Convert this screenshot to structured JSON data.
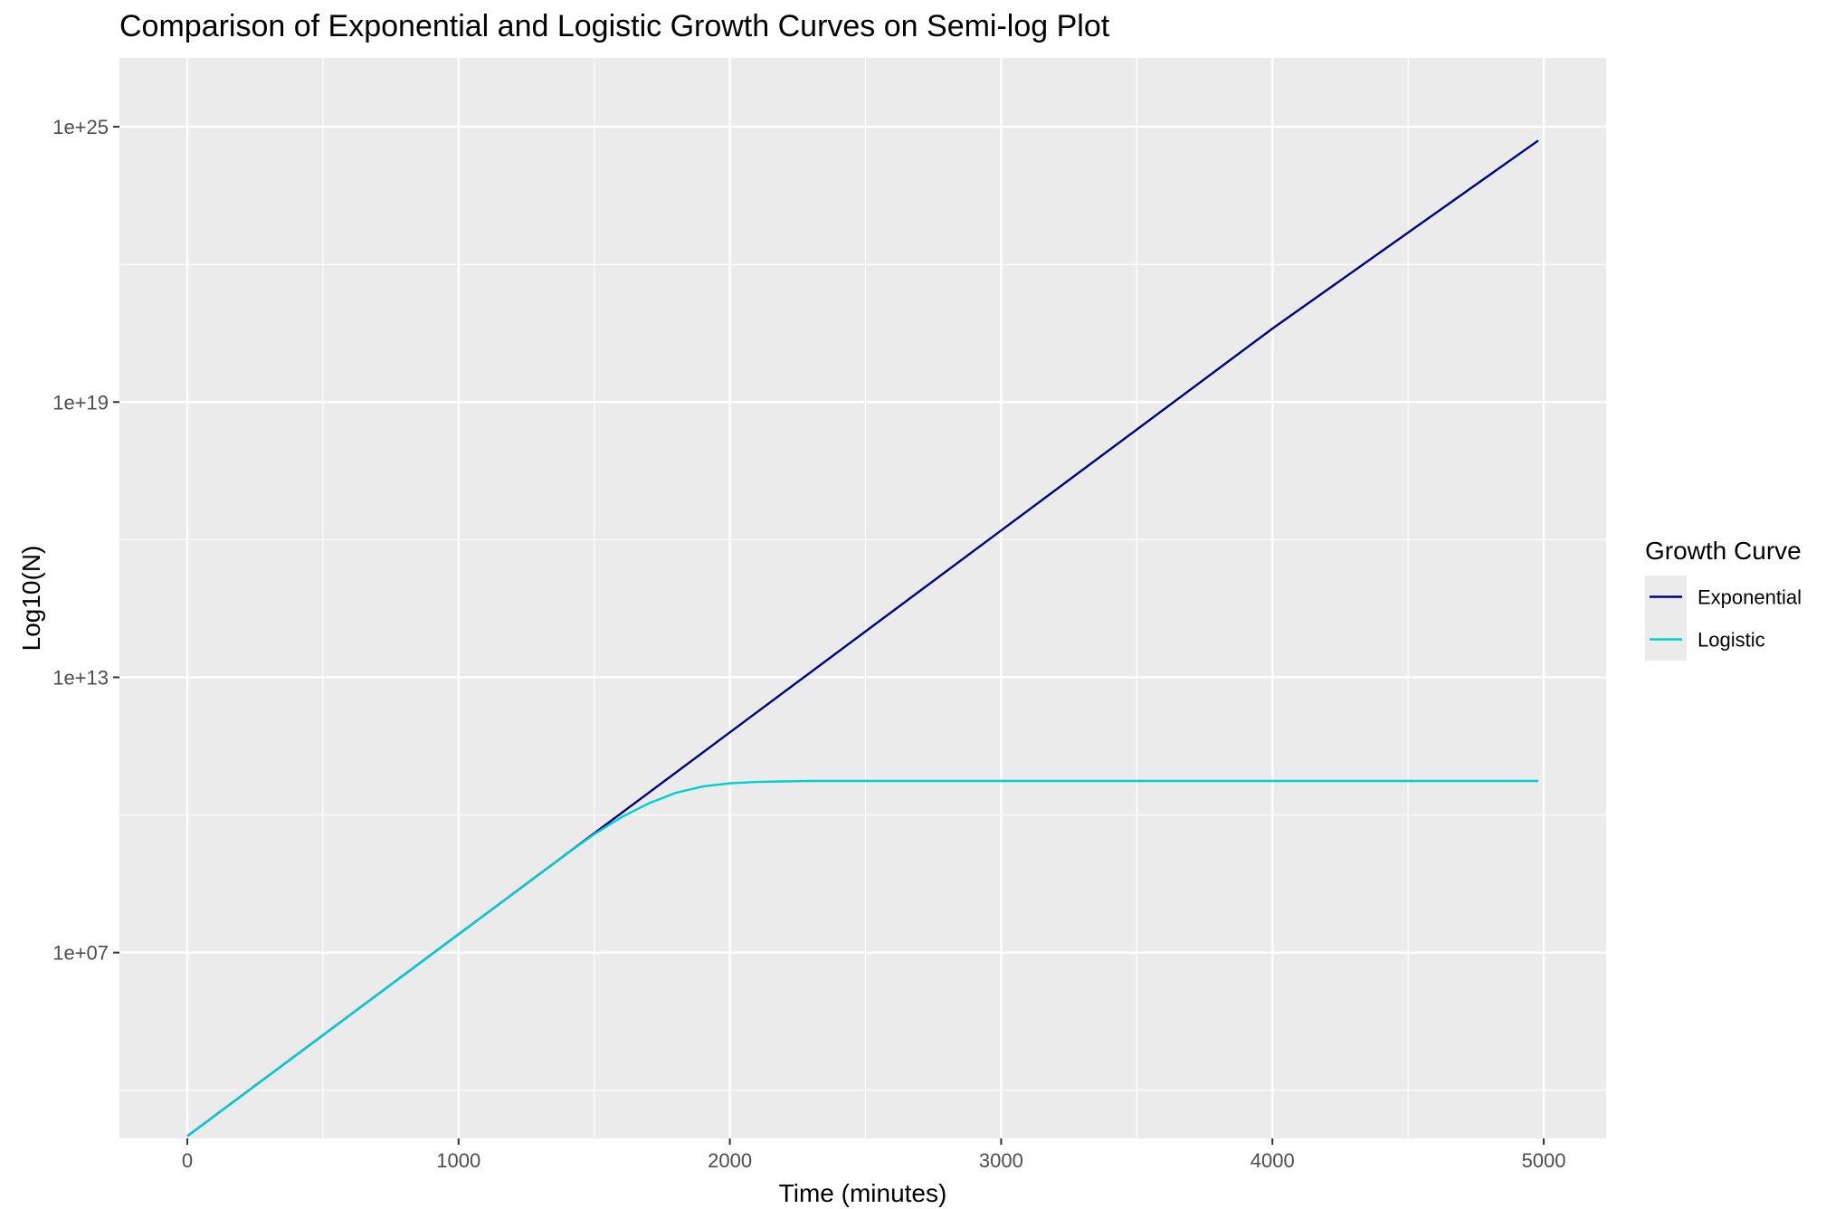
{
  "chart_data": {
    "type": "line",
    "title": "Comparison of Exponential and Logistic Growth Curves on Semi-log Plot",
    "xlabel": "Time (minutes)",
    "ylabel": "Log10(N)",
    "x_scale": "linear",
    "y_scale": "log10",
    "xlim": [
      -250,
      5230
    ],
    "ylim_log10": [
      2.95,
      26.5
    ],
    "x_ticks": [
      0,
      1000,
      2000,
      3000,
      4000,
      5000
    ],
    "x_tick_labels": [
      "0",
      "1000",
      "2000",
      "3000",
      "4000",
      "5000"
    ],
    "y_ticks_log10": [
      7,
      13,
      19,
      25
    ],
    "y_tick_labels": [
      "1e+07",
      "1e+13",
      "1e+19",
      "1e+25"
    ],
    "grid": true,
    "legend": {
      "title": "Growth Curve",
      "position": "right"
    },
    "background": "#ebebeb",
    "series": [
      {
        "name": "Exponential",
        "color": "#000080",
        "x": [
          0,
          1000,
          2000,
          3000,
          4000,
          4980
        ],
        "log10_y": [
          3.0,
          7.4,
          11.8,
          16.2,
          20.6,
          24.7
        ]
      },
      {
        "name": "Logistic",
        "color": "#00ced1",
        "x": [
          0,
          1000,
          1400,
          1500,
          1600,
          1700,
          1800,
          1900,
          2000,
          2100,
          2200,
          2300,
          2500,
          3000,
          4000,
          4980
        ],
        "log10_y": [
          3.0,
          7.4,
          9.16,
          9.58,
          9.95,
          10.25,
          10.48,
          10.62,
          10.69,
          10.72,
          10.73,
          10.74,
          10.74,
          10.74,
          10.74,
          10.74
        ]
      }
    ]
  }
}
